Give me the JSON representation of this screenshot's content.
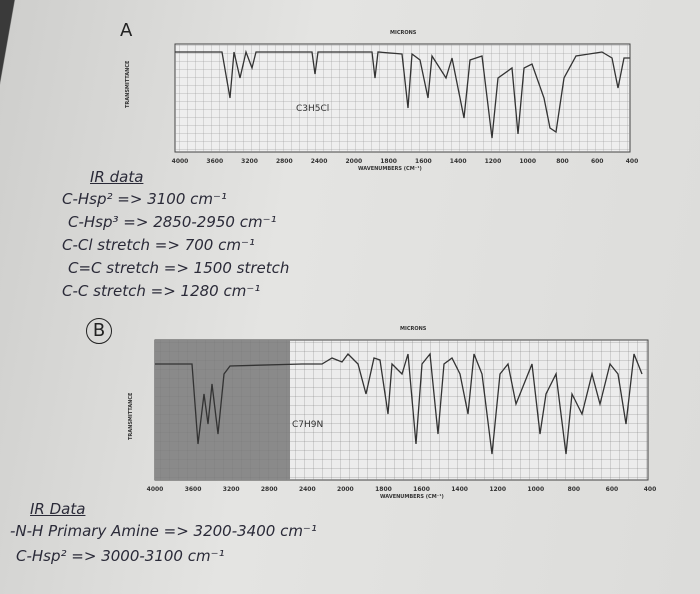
{
  "section_a": {
    "label": "A",
    "spectrum": {
      "formula": "C3H5Cl",
      "top_axis_title": "MICRONS",
      "bottom_axis_title": "WAVENUMBERS (CM⁻¹)",
      "side_axis_title": "TRANSMITTANCE",
      "wavenumber_labels": [
        "4000",
        "3600",
        "3200",
        "2800",
        "2400",
        "2000",
        "1800",
        "1600",
        "1400",
        "1200",
        "1000",
        "800",
        "600",
        "400"
      ]
    },
    "notes_title": "IR data",
    "notes": [
      "C-Hsp² => 3100 cm⁻¹",
      "C-Hsp³ => 2850-2950 cm⁻¹",
      "C-Cl stretch => 700 cm⁻¹",
      "C=C stretch => 1500 stretch",
      "C-C stretch => 1280 cm⁻¹"
    ]
  },
  "section_b": {
    "label": "B",
    "spectrum": {
      "formula": "C7H9N",
      "top_axis_title": "MICRONS",
      "bottom_axis_title": "WAVENUMBERS (CM⁻¹)",
      "side_axis_title": "TRANSMITTANCE",
      "wavenumber_labels": [
        "4000",
        "3600",
        "3200",
        "2800",
        "2400",
        "2000",
        "1800",
        "1600",
        "1400",
        "1200",
        "1000",
        "800",
        "600",
        "400"
      ]
    },
    "notes_title": "IR Data",
    "notes": [
      "-N-H Primary Amine => 3200-3400 cm⁻¹",
      "C-Hsp² => 3000-3100 cm⁻¹"
    ]
  }
}
